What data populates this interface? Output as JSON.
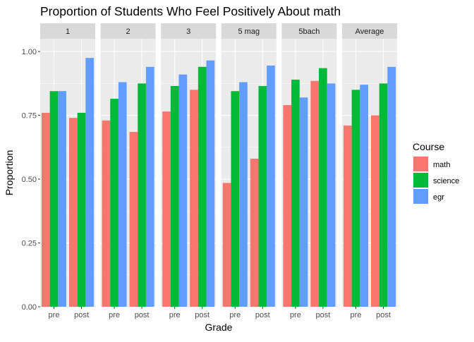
{
  "chart_data": {
    "type": "bar",
    "title": "Proportion of Students Who Feel Positively About math",
    "xlabel": "Grade",
    "ylabel": "Proportion",
    "ylim": [
      0,
      1.05
    ],
    "yticks": [
      "0.00",
      "0.25",
      "0.50",
      "0.75",
      "1.00"
    ],
    "ytick_values": [
      0,
      0.25,
      0.5,
      0.75,
      1.0
    ],
    "grid": true,
    "categories": [
      "pre",
      "post"
    ],
    "facets": [
      "1",
      "2",
      "3",
      "5 mag",
      "5bach",
      "Average"
    ],
    "legend": {
      "title": "Course",
      "position": "right",
      "entries": [
        "math",
        "science",
        "egr"
      ]
    },
    "colors": {
      "math": "#F8766D",
      "science": "#00BA38",
      "egr": "#619CFF",
      "panel_bg": "#EBEBEB",
      "strip_bg": "#D9D9D9",
      "grid": "#FFFFFF"
    },
    "series": [
      {
        "name": "math",
        "values": [
          [
            0.76,
            0.74
          ],
          [
            0.73,
            0.685
          ],
          [
            0.765,
            0.85
          ],
          [
            0.485,
            0.58
          ],
          [
            0.79,
            0.885
          ],
          [
            0.71,
            0.75
          ]
        ]
      },
      {
        "name": "science",
        "values": [
          [
            0.845,
            0.76
          ],
          [
            0.815,
            0.875
          ],
          [
            0.865,
            0.94
          ],
          [
            0.845,
            0.865
          ],
          [
            0.89,
            0.935
          ],
          [
            0.85,
            0.875
          ]
        ]
      },
      {
        "name": "egr",
        "values": [
          [
            0.845,
            0.975
          ],
          [
            0.88,
            0.94
          ],
          [
            0.91,
            0.965
          ],
          [
            0.88,
            0.945
          ],
          [
            0.82,
            0.875
          ],
          [
            0.87,
            0.94
          ]
        ]
      }
    ]
  }
}
